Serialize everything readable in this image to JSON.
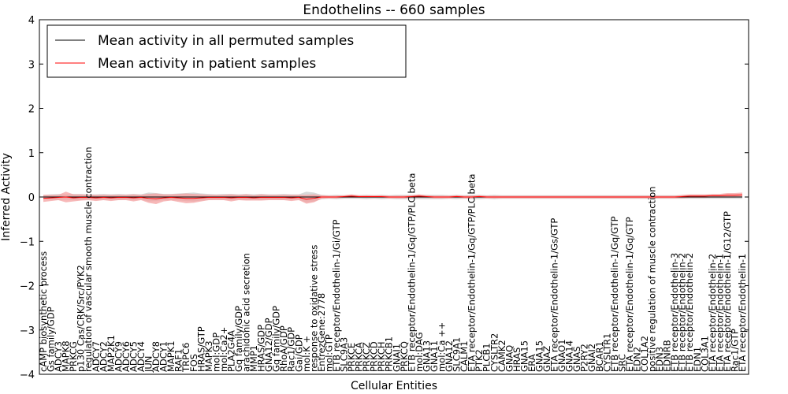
{
  "chart_data": {
    "type": "line",
    "title": "Endothelins -- 660 samples",
    "xlabel": "Cellular Entities",
    "ylabel": "Inferred Activity",
    "ylim": [
      -4,
      4
    ],
    "yticks": [
      -4,
      -3,
      -2,
      -1,
      0,
      1,
      2,
      3,
      4
    ],
    "legend_position": "top-left",
    "grid": false,
    "categories": [
      "cAMP biosynthetic process",
      "Gs family/GDP",
      "ADCY3",
      "MAPK8",
      "PRKCG",
      "p130 Cas/CRK/Src/PYK2",
      "regulation of vascular smooth muscle contraction",
      "ADCY7",
      "ADCY2",
      "MAP2K1",
      "ADCY9",
      "ADCY6",
      "ADCY5",
      "ADCY4",
      "JUN",
      "ADCY8",
      "ADCY1",
      "MAPK1",
      "RAF1",
      "TRPC6",
      "FOS",
      "HRAS/GTP",
      "MAPK3",
      "mol:GDP",
      "mol:Ca2+",
      "PLA2G4A",
      "Gq family/GDP",
      "arachidonic acid secretion",
      "MMP1",
      "HRAS/GDP",
      "GNA12/GDP",
      "Gq family/GDP",
      "RhoA/GDP",
      "Rac1/GDP",
      "Gai/GDP",
      "mol:K +",
      "response to oxidative stress",
      "EntrezGene:2778",
      "mol:GTP",
      "ETB receptor/Endothelin-1/Gi/GTP",
      "SLC9A3",
      "PRKCE",
      "PRKCA",
      "PRKCZ",
      "PRKCD",
      "PRKCH",
      "PRKCB1",
      "GNAI1",
      "PRKCQ",
      "ETB receptor/Endothelin-1/Gq/GTP/PLC beta",
      "mol:DAG",
      "GNA13",
      "GNA11",
      "mol:Ca ++",
      "GNA12",
      "SLC9A1",
      "CALM1",
      "ETA receptor/Endothelin-1/Gq/GTP/PLC beta",
      "PTK2",
      "PLCB1",
      "CYSLTR2",
      "CAMK2",
      "GNAQ",
      "HRAS",
      "GNA15",
      "ERA",
      "GNA15",
      "GNAZ",
      "ETA receptor/Endothelin-1/Gs/GTP",
      "GNAO1",
      "GNA14",
      "GNAS",
      "P2RY2",
      "GNAI2",
      "BCAR1",
      "CYSLTR1",
      "ETB receptor/Endothelin-1/Gq/GTP",
      "SRC",
      "ETA receptor/Endothelin-1/Gq/GTP",
      "EDN2",
      "COL1A2",
      "positive regulation of muscle contraction",
      "EDN3",
      "EDNRB",
      "ETB receptor/Endothelin-3",
      "ETB receptor/Endothelin-2",
      "ETB receptor/Endothelin-2",
      "EDN1",
      "COL3A1",
      "ETA receptor/Endothelin-2",
      "ETA receptor/Endothelin-1",
      "ETA receptor/Endothelin-1/G12/GTP",
      "Rac1/GTP",
      "ETA receptor/Endothelin-1"
    ],
    "series": [
      {
        "name": "Mean activity in all permuted samples",
        "color": "#000000",
        "band_color": "#c8c8c8",
        "values": [
          0,
          0,
          0,
          0,
          0,
          0,
          0,
          0,
          0,
          0,
          0,
          0,
          0,
          0,
          0,
          0,
          0,
          0,
          0,
          0,
          0,
          0,
          0,
          0,
          0,
          0,
          0,
          0,
          0,
          0,
          0,
          0,
          0,
          0,
          0,
          0,
          0,
          0,
          0,
          0,
          0,
          0,
          0,
          0,
          0,
          0,
          0,
          0,
          0,
          0,
          0,
          0,
          0,
          0,
          0,
          0,
          0,
          0,
          0,
          0,
          0,
          0,
          0,
          0,
          0,
          0,
          0,
          0,
          0,
          0,
          0,
          0,
          0,
          0,
          0,
          0,
          0,
          0,
          0,
          0,
          0,
          0,
          0,
          0,
          0,
          0,
          0,
          0,
          0,
          0,
          0,
          0,
          0,
          0
        ],
        "band_half_width": [
          0.05,
          0.06,
          0.07,
          0.06,
          0.07,
          0.07,
          0.06,
          0.06,
          0.07,
          0.06,
          0.07,
          0.06,
          0.07,
          0.06,
          0.1,
          0.09,
          0.07,
          0.07,
          0.08,
          0.09,
          0.1,
          0.08,
          0.07,
          0.06,
          0.07,
          0.07,
          0.06,
          0.07,
          0.06,
          0.07,
          0.06,
          0.06,
          0.07,
          0.06,
          0.06,
          0.12,
          0.1,
          0.05,
          0.04,
          0.05,
          0.04,
          0.04,
          0.04,
          0.05,
          0.04,
          0.05,
          0.04,
          0.05,
          0.05,
          0.05,
          0.05,
          0.05,
          0.05,
          0.05,
          0.04,
          0.05,
          0.04,
          0.05,
          0.05,
          0.04,
          0.05,
          0.04,
          0.04,
          0.04,
          0.04,
          0.04,
          0.04,
          0.04,
          0.04,
          0.04,
          0.04,
          0.04,
          0.04,
          0.04,
          0.04,
          0.04,
          0.04,
          0.04,
          0.04,
          0.04,
          0.04,
          0.04,
          0.04,
          0.04,
          0.04,
          0.04,
          0.04,
          0.04,
          0.04,
          0.04,
          0.04,
          0.04,
          0.04,
          0.04
        ]
      },
      {
        "name": "Mean activity in patient samples",
        "color": "#ff0000",
        "band_color": "#f4a0a0",
        "values": [
          -0.03,
          -0.02,
          -0.01,
          0.0,
          -0.02,
          -0.01,
          -0.01,
          -0.02,
          -0.01,
          -0.02,
          -0.01,
          -0.01,
          -0.02,
          -0.01,
          -0.03,
          -0.04,
          -0.02,
          -0.01,
          -0.02,
          -0.03,
          -0.03,
          -0.02,
          -0.01,
          -0.01,
          -0.01,
          -0.02,
          -0.01,
          -0.01,
          -0.02,
          -0.01,
          -0.01,
          -0.01,
          -0.01,
          -0.02,
          -0.01,
          -0.05,
          -0.03,
          0.0,
          0.0,
          0.0,
          0.01,
          0.02,
          0.01,
          0.01,
          0.01,
          0.01,
          0.0,
          0.0,
          0.0,
          0.01,
          0.02,
          0.01,
          0.0,
          0.0,
          0.0,
          0.01,
          0.0,
          0.0,
          0.01,
          0.0,
          0.0,
          0.0,
          0.0,
          0.0,
          0.0,
          0.0,
          0.0,
          0.0,
          0.0,
          0.0,
          0.0,
          0.0,
          0.0,
          0.0,
          0.0,
          0.0,
          0.0,
          0.0,
          0.0,
          0.0,
          0.0,
          0.0,
          0.0,
          0.0,
          0.0,
          0.01,
          0.02,
          0.02,
          0.02,
          0.03,
          0.03,
          0.04,
          0.04,
          0.05
        ],
        "band_half_width": [
          0.08,
          0.07,
          0.06,
          0.12,
          0.08,
          0.07,
          0.06,
          0.07,
          0.06,
          0.07,
          0.06,
          0.06,
          0.08,
          0.06,
          0.1,
          0.12,
          0.08,
          0.07,
          0.09,
          0.11,
          0.1,
          0.08,
          0.06,
          0.06,
          0.06,
          0.08,
          0.06,
          0.07,
          0.06,
          0.07,
          0.06,
          0.06,
          0.06,
          0.07,
          0.06,
          0.1,
          0.09,
          0.04,
          0.03,
          0.03,
          0.03,
          0.04,
          0.03,
          0.03,
          0.03,
          0.03,
          0.03,
          0.03,
          0.03,
          0.03,
          0.04,
          0.03,
          0.03,
          0.03,
          0.03,
          0.03,
          0.03,
          0.03,
          0.03,
          0.03,
          0.03,
          0.03,
          0.03,
          0.03,
          0.03,
          0.03,
          0.03,
          0.03,
          0.03,
          0.03,
          0.03,
          0.03,
          0.03,
          0.03,
          0.03,
          0.03,
          0.03,
          0.03,
          0.03,
          0.03,
          0.03,
          0.03,
          0.03,
          0.03,
          0.03,
          0.04,
          0.04,
          0.04,
          0.04,
          0.04,
          0.04,
          0.05,
          0.05,
          0.05
        ]
      }
    ]
  }
}
